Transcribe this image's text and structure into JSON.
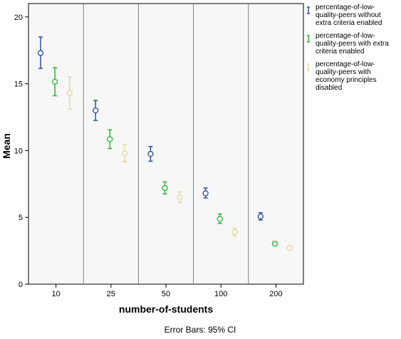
{
  "chart_data": {
    "type": "scatter",
    "xlabel": "number-of-students",
    "ylabel": "Mean",
    "categories": [
      "10",
      "25",
      "50",
      "100",
      "200"
    ],
    "ylim": [
      0,
      21
    ],
    "yticks": [
      0,
      5,
      10,
      15,
      20
    ],
    "grid": false,
    "legend_position": "right",
    "error_bars": "95% CI",
    "series": [
      {
        "name": "percentage-of-low-quality-peers without extra criteria enabled",
        "legend_lines": [
          "percentage-of-low-",
          "quality-peers without",
          "extra criteria enabled"
        ],
        "color": "#2c4fa3",
        "mean": [
          17.3,
          13.0,
          9.75,
          6.8,
          5.07
        ],
        "lower": [
          16.15,
          12.25,
          9.2,
          6.45,
          4.8
        ],
        "upper": [
          18.5,
          13.75,
          10.3,
          7.2,
          5.35
        ]
      },
      {
        "name": "percentage-of-low-quality-peers with extra criteria enabled",
        "legend_lines": [
          "percentage-of-low-",
          "quality-peers with extra",
          "criteria enabled"
        ],
        "color": "#2db536",
        "mean": [
          15.15,
          10.85,
          7.2,
          4.88,
          3.03
        ],
        "lower": [
          14.1,
          10.15,
          6.75,
          4.55,
          2.9
        ],
        "upper": [
          16.2,
          11.55,
          7.65,
          5.25,
          3.18
        ]
      },
      {
        "name": "percentage-of-low-quality-peers with economy principles disabled",
        "legend_lines": [
          "percentage-of-low-",
          "quality-peers with",
          "economy principles",
          "disabled"
        ],
        "color": "#e3d9a6",
        "mean": [
          14.3,
          9.8,
          6.5,
          3.9,
          2.72
        ],
        "lower": [
          13.1,
          9.15,
          6.1,
          3.6,
          2.58
        ],
        "upper": [
          15.5,
          10.45,
          6.9,
          4.2,
          2.88
        ]
      }
    ]
  },
  "footnote": "Error Bars: 95% CI"
}
